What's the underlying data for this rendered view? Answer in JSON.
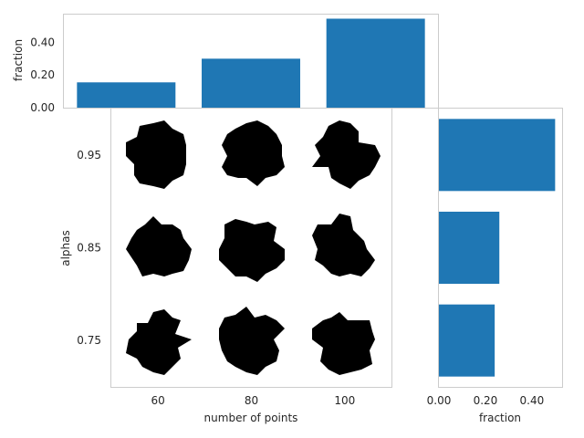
{
  "chart_data": [
    {
      "id": "top-marginal",
      "type": "bar",
      "orientation": "vertical",
      "categories": [
        "60",
        "80",
        "100"
      ],
      "values": [
        0.155,
        0.3,
        0.545
      ],
      "ylabel": "fraction",
      "ylim": [
        0,
        0.57
      ],
      "yticks": [
        0.0,
        0.2,
        0.4
      ],
      "ytick_labels": [
        "0.00",
        "0.20",
        "0.40"
      ],
      "color": "#1f77b4",
      "grid": false
    },
    {
      "id": "main-grid",
      "type": "table",
      "description": "grid of black shape thumbnails",
      "xlabel": "number of points",
      "ylabel": "alphas",
      "x": [
        60,
        80,
        100
      ],
      "x_tick_labels": [
        "60",
        "80",
        "100"
      ],
      "y": [
        0.95,
        0.85,
        0.75
      ],
      "y_tick_labels": [
        "0.95",
        "0.85",
        "0.75"
      ],
      "xlim": [
        50,
        110
      ],
      "ylim": [
        0.7,
        1.0
      ],
      "cell_color": "#000000"
    },
    {
      "id": "right-marginal",
      "type": "bar",
      "orientation": "horizontal",
      "categories": [
        "0.95",
        "0.85",
        "0.75"
      ],
      "values": [
        0.5,
        0.26,
        0.24
      ],
      "xlabel": "fraction",
      "xlim": [
        0,
        0.53
      ],
      "xticks": [
        0.0,
        0.2,
        0.4
      ],
      "xtick_labels": [
        "0.00",
        "0.20",
        "0.40"
      ],
      "color": "#1f77b4",
      "grid": false
    }
  ]
}
